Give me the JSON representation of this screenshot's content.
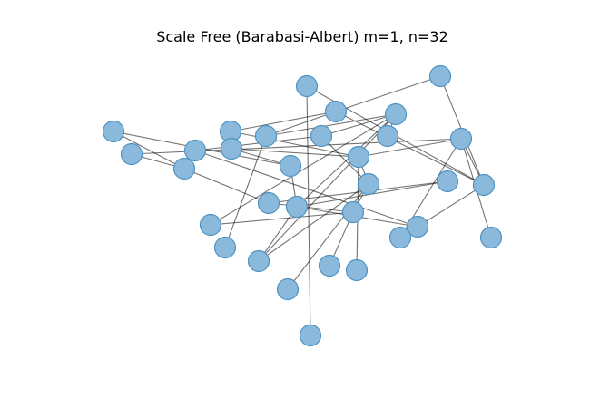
{
  "figure": {
    "title": "Scale Free (Barabasi-Albert) m=1, n=32"
  },
  "colors": {
    "node_fill": "#8ab9db",
    "node_stroke": "#4f93c2",
    "edge": "#000000",
    "background": "#ffffff"
  },
  "graph": {
    "node_count": 32,
    "edges": [
      [
        0,
        11
      ],
      [
        0,
        8
      ],
      [
        1,
        19
      ],
      [
        1,
        4
      ],
      [
        2,
        19
      ],
      [
        2,
        31
      ],
      [
        3,
        4
      ],
      [
        3,
        13
      ],
      [
        4,
        7
      ],
      [
        4,
        19
      ],
      [
        5,
        8
      ],
      [
        5,
        18
      ],
      [
        6,
        10
      ],
      [
        6,
        22
      ],
      [
        7,
        23
      ],
      [
        7,
        12
      ],
      [
        8,
        15
      ],
      [
        9,
        13
      ],
      [
        9,
        11
      ],
      [
        10,
        12
      ],
      [
        10,
        14
      ],
      [
        11,
        16
      ],
      [
        12,
        16
      ],
      [
        12,
        21
      ],
      [
        12,
        24
      ],
      [
        12,
        25
      ],
      [
        13,
        14
      ],
      [
        13,
        18
      ],
      [
        13,
        29
      ],
      [
        14,
        30
      ],
      [
        14,
        25
      ],
      [
        14,
        17
      ],
      [
        15,
        17
      ],
      [
        15,
        20
      ],
      [
        16,
        20
      ],
      [
        16,
        22
      ],
      [
        16,
        25
      ],
      [
        17,
        28
      ],
      [
        17,
        21
      ],
      [
        18,
        26
      ],
      [
        18,
        27
      ],
      [
        18,
        19
      ],
      [
        19,
        22
      ]
    ]
  }
}
